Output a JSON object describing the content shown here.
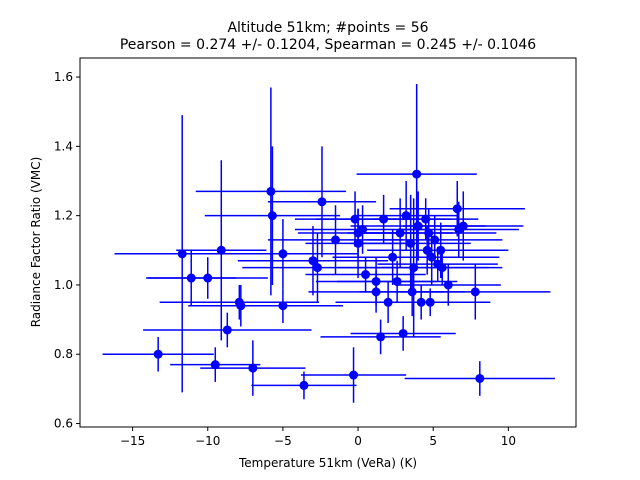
{
  "chart_data": {
    "type": "scatter",
    "title_line1": "Altitude 51km;  #points = 56",
    "title_line2": "Pearson =  0.274 +/-  0.1204, Spearman =  0.245 +/-  0.1046",
    "xlabel": "Temperature 51km (VeRa) (K)",
    "ylabel": "Radiance Factor Ratio (VMC)",
    "xlim": [
      -18.5,
      14.5
    ],
    "ylim": [
      0.59,
      1.655
    ],
    "xticks": [
      -15,
      -10,
      -5,
      0,
      5,
      10
    ],
    "xtick_labels": [
      "−15",
      "−10",
      "−5",
      "0",
      "5",
      "10"
    ],
    "yticks": [
      0.6,
      0.8,
      1.0,
      1.2,
      1.4,
      1.6
    ],
    "ytick_labels": [
      "0.6",
      "0.8",
      "1.0",
      "1.2",
      "1.4",
      "1.6"
    ],
    "grid": false,
    "color": "#0000ff",
    "points": [
      {
        "x": -13.3,
        "y": 0.8,
        "xerr": 3.7,
        "yerr": 0.05
      },
      {
        "x": -11.7,
        "y": 1.09,
        "xerr": 4.5,
        "yerr": 0.4
      },
      {
        "x": -11.1,
        "y": 1.02,
        "xerr": 3.0,
        "yerr": 0.08
      },
      {
        "x": -10.0,
        "y": 1.02,
        "xerr": 4.0,
        "yerr": 0.06
      },
      {
        "x": -9.5,
        "y": 0.77,
        "xerr": 3.0,
        "yerr": 0.05
      },
      {
        "x": -9.1,
        "y": 1.1,
        "xerr": 3.0,
        "yerr": 0.26
      },
      {
        "x": -8.7,
        "y": 0.87,
        "xerr": 5.6,
        "yerr": 0.05
      },
      {
        "x": -7.9,
        "y": 0.95,
        "xerr": 5.3,
        "yerr": 0.05
      },
      {
        "x": -7.8,
        "y": 0.94,
        "xerr": 3.5,
        "yerr": 0.06
      },
      {
        "x": -7.0,
        "y": 0.76,
        "xerr": 3.5,
        "yerr": 0.08
      },
      {
        "x": -5.8,
        "y": 1.27,
        "xerr": 5.0,
        "yerr": 0.3
      },
      {
        "x": -5.7,
        "y": 1.2,
        "xerr": 4.5,
        "yerr": 0.2
      },
      {
        "x": -5.0,
        "y": 1.09,
        "xerr": 5.0,
        "yerr": 0.1
      },
      {
        "x": -5.0,
        "y": 0.94,
        "xerr": 4.0,
        "yerr": 0.05
      },
      {
        "x": -3.6,
        "y": 0.71,
        "xerr": 3.5,
        "yerr": 0.04
      },
      {
        "x": -3.0,
        "y": 1.07,
        "xerr": 5.0,
        "yerr": 0.1
      },
      {
        "x": -2.7,
        "y": 1.05,
        "xerr": 5.0,
        "yerr": 0.1
      },
      {
        "x": -2.4,
        "y": 1.24,
        "xerr": 3.6,
        "yerr": 0.16
      },
      {
        "x": -1.5,
        "y": 1.13,
        "xerr": 4.5,
        "yerr": 0.1
      },
      {
        "x": -0.3,
        "y": 0.74,
        "xerr": 3.5,
        "yerr": 0.08
      },
      {
        "x": 0.0,
        "y": 1.15,
        "xerr": 4.0,
        "yerr": 0.07
      },
      {
        "x": 0.0,
        "y": 1.12,
        "xerr": 3.5,
        "yerr": 0.1
      },
      {
        "x": 0.3,
        "y": 1.16,
        "xerr": 4.5,
        "yerr": 0.07
      },
      {
        "x": 0.5,
        "y": 1.03,
        "xerr": 4.0,
        "yerr": 0.05
      },
      {
        "x": 1.2,
        "y": 1.01,
        "xerr": 4.0,
        "yerr": 0.07
      },
      {
        "x": 1.2,
        "y": 0.98,
        "xerr": 4.5,
        "yerr": 0.06
      },
      {
        "x": 1.5,
        "y": 0.85,
        "xerr": 4.0,
        "yerr": 0.05
      },
      {
        "x": 1.7,
        "y": 1.19,
        "xerr": 4.5,
        "yerr": 0.07
      },
      {
        "x": 2.0,
        "y": 0.95,
        "xerr": 3.5,
        "yerr": 0.06
      },
      {
        "x": 2.3,
        "y": 1.08,
        "xerr": 4.0,
        "yerr": 0.08
      },
      {
        "x": 2.8,
        "y": 1.15,
        "xerr": 3.5,
        "yerr": 0.1
      },
      {
        "x": 3.0,
        "y": 0.86,
        "xerr": 3.5,
        "yerr": 0.05
      },
      {
        "x": 3.5,
        "y": 1.12,
        "xerr": 4.0,
        "yerr": 0.14
      },
      {
        "x": 3.6,
        "y": 0.98,
        "xerr": 3.5,
        "yerr": 0.07
      },
      {
        "x": 3.7,
        "y": 1.05,
        "xerr": 5.0,
        "yerr": 0.2
      },
      {
        "x": 3.9,
        "y": 1.32,
        "xerr": 4.0,
        "yerr": 0.26
      },
      {
        "x": 4.0,
        "y": 1.17,
        "xerr": 4.5,
        "yerr": 0.1
      },
      {
        "x": 4.2,
        "y": 0.95,
        "xerr": 4.0,
        "yerr": 0.05
      },
      {
        "x": 4.5,
        "y": 1.19,
        "xerr": 3.5,
        "yerr": 0.06
      },
      {
        "x": 4.6,
        "y": 1.1,
        "xerr": 4.0,
        "yerr": 0.07
      },
      {
        "x": 4.7,
        "y": 1.15,
        "xerr": 4.5,
        "yerr": 0.07
      },
      {
        "x": 4.8,
        "y": 0.95,
        "xerr": 4.0,
        "yerr": 0.04
      },
      {
        "x": 4.9,
        "y": 1.08,
        "xerr": 4.5,
        "yerr": 0.08
      },
      {
        "x": 5.1,
        "y": 1.13,
        "xerr": 4.5,
        "yerr": 0.07
      },
      {
        "x": 5.3,
        "y": 1.06,
        "xerr": 4.0,
        "yerr": 0.05
      },
      {
        "x": 5.5,
        "y": 1.1,
        "xerr": 4.5,
        "yerr": 0.08
      },
      {
        "x": 5.6,
        "y": 1.05,
        "xerr": 4.0,
        "yerr": 0.05
      },
      {
        "x": 6.0,
        "y": 1.0,
        "xerr": 3.5,
        "yerr": 0.06
      },
      {
        "x": 6.6,
        "y": 1.22,
        "xerr": 4.5,
        "yerr": 0.08
      },
      {
        "x": 6.7,
        "y": 1.16,
        "xerr": 4.0,
        "yerr": 0.08
      },
      {
        "x": 7.0,
        "y": 1.17,
        "xerr": 4.0,
        "yerr": 0.1
      },
      {
        "x": 7.8,
        "y": 0.98,
        "xerr": 5.0,
        "yerr": 0.08
      },
      {
        "x": 8.1,
        "y": 0.73,
        "xerr": 5.0,
        "yerr": 0.05
      },
      {
        "x": 2.6,
        "y": 1.01,
        "xerr": 4.0,
        "yerr": 0.06
      },
      {
        "x": -0.2,
        "y": 1.19,
        "xerr": 4.0,
        "yerr": 0.08
      },
      {
        "x": 3.2,
        "y": 1.2,
        "xerr": 3.5,
        "yerr": 0.1
      }
    ]
  }
}
